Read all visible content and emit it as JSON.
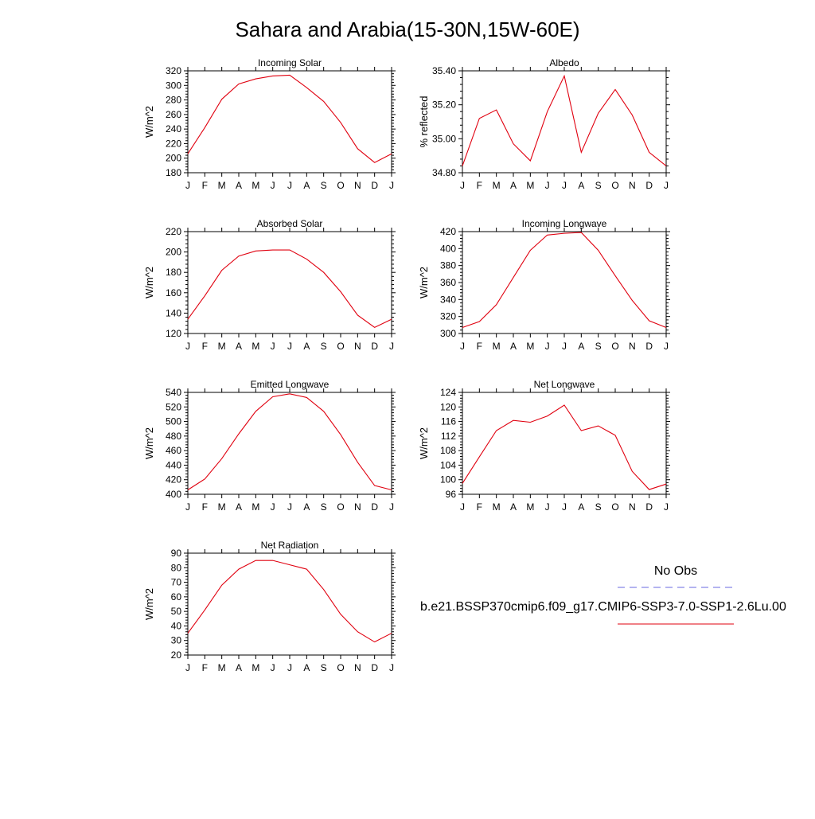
{
  "figure_title": "Sahara and Arabia(15-30N,15W-60E)",
  "month_labels": [
    "J",
    "F",
    "M",
    "A",
    "M",
    "J",
    "J",
    "A",
    "S",
    "O",
    "N",
    "D",
    "J"
  ],
  "legend": {
    "obs_label": "No Obs",
    "obs_color": "#6a6ae0",
    "model_label": "b.e21.BSSP370cmip6.f09_g17.CMIP6-SSP3-7.0-SSP1-2.6Lu.00",
    "model_color": "#e0000f"
  },
  "line_color": "#e0000f",
  "chart_data": [
    {
      "type": "line",
      "title": "Incoming Solar",
      "ylabel": "W/m^2",
      "ylim": [
        180,
        320
      ],
      "yticks": [
        180,
        200,
        220,
        240,
        260,
        280,
        300,
        320
      ],
      "yticklabels": [
        "180",
        "200",
        "220",
        "240",
        "260",
        "280",
        "300",
        "320"
      ],
      "series": [
        {
          "values": [
            206,
            242,
            281,
            302,
            309,
            313,
            314,
            297,
            278,
            249,
            213,
            194,
            206
          ]
        }
      ]
    },
    {
      "type": "line",
      "title": "Albedo",
      "ylabel": "% reflected",
      "ylim": [
        34.8,
        35.4
      ],
      "yticks": [
        34.8,
        35.0,
        35.2,
        35.4
      ],
      "yticklabels": [
        "34.80",
        "35.00",
        "35.20",
        "35.40"
      ],
      "series": [
        {
          "values": [
            34.84,
            35.12,
            35.17,
            34.97,
            34.87,
            35.16,
            35.37,
            34.92,
            35.15,
            35.29,
            35.14,
            34.92,
            34.84
          ]
        }
      ]
    },
    {
      "type": "line",
      "title": "Absorbed Solar",
      "ylabel": "W/m^2",
      "ylim": [
        120,
        220
      ],
      "yticks": [
        120,
        140,
        160,
        180,
        200,
        220
      ],
      "yticklabels": [
        "120",
        "140",
        "160",
        "180",
        "200",
        "220"
      ],
      "series": [
        {
          "values": [
            134,
            157,
            182,
            196,
            201,
            202,
            202,
            193,
            180,
            161,
            138,
            126,
            134
          ]
        }
      ]
    },
    {
      "type": "line",
      "title": "Incoming Longwave",
      "ylabel": "W/m^2",
      "ylim": [
        300,
        420
      ],
      "yticks": [
        300,
        320,
        340,
        360,
        380,
        400,
        420
      ],
      "yticklabels": [
        "300",
        "320",
        "340",
        "360",
        "380",
        "400",
        "420"
      ],
      "series": [
        {
          "values": [
            307,
            314,
            334,
            366,
            398,
            416,
            418,
            419,
            398,
            368,
            339,
            315,
            307
          ]
        }
      ]
    },
    {
      "type": "line",
      "title": "Emitted Longwave",
      "ylabel": "W/m^2",
      "ylim": [
        400,
        540
      ],
      "yticks": [
        400,
        420,
        440,
        460,
        480,
        500,
        520,
        540
      ],
      "yticklabels": [
        "400",
        "420",
        "440",
        "460",
        "480",
        "500",
        "520",
        "540"
      ],
      "series": [
        {
          "values": [
            406,
            421,
            449,
            483,
            514,
            534,
            538,
            533,
            514,
            482,
            444,
            412,
            406
          ]
        }
      ]
    },
    {
      "type": "line",
      "title": "Net Longwave",
      "ylabel": "W/m^2",
      "ylim": [
        96,
        124
      ],
      "yticks": [
        96,
        100,
        104,
        108,
        112,
        116,
        120,
        124
      ],
      "yticklabels": [
        "96",
        "100",
        "104",
        "108",
        "112",
        "116",
        "120",
        "124"
      ],
      "series": [
        {
          "values": [
            99,
            106.3,
            113.5,
            116.3,
            115.8,
            117.5,
            120.5,
            113.5,
            114.8,
            112.2,
            102.3,
            97.3,
            98.8
          ]
        }
      ]
    },
    {
      "type": "line",
      "title": "Net Radiation",
      "ylabel": "W/m^2",
      "ylim": [
        20,
        90
      ],
      "yticks": [
        20,
        30,
        40,
        50,
        60,
        70,
        80,
        90
      ],
      "yticklabels": [
        "20",
        "30",
        "40",
        "50",
        "60",
        "70",
        "80",
        "90"
      ],
      "series": [
        {
          "values": [
            35,
            51,
            68,
            79,
            85,
            85,
            82,
            79,
            65,
            48,
            36,
            29,
            35
          ]
        }
      ]
    }
  ]
}
